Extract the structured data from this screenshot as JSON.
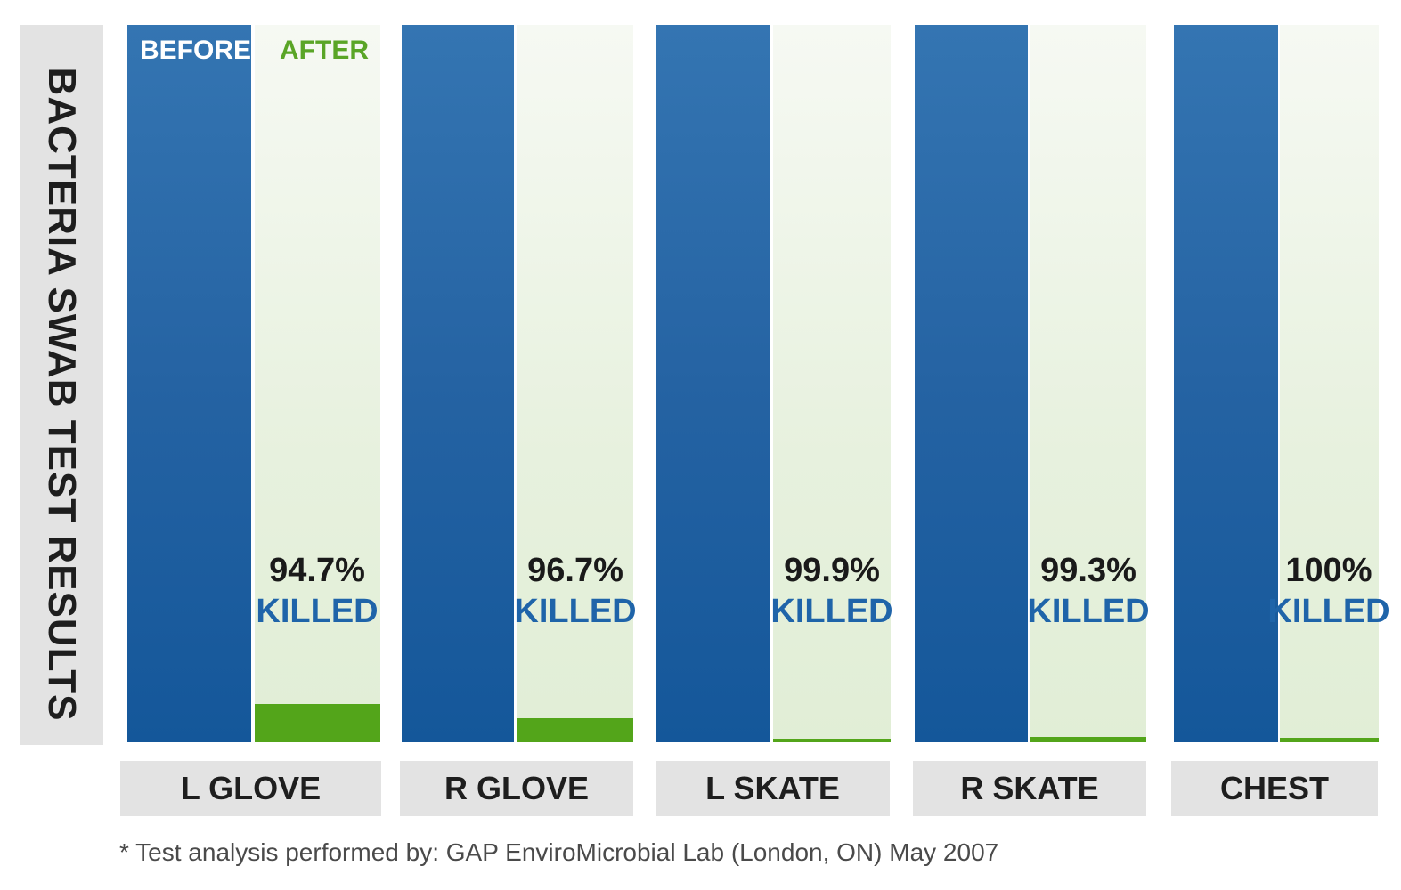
{
  "chart_data": {
    "type": "bar",
    "title": "BACTERIA SWAB TEST RESULTS",
    "legend": [
      "BEFORE",
      "AFTER"
    ],
    "categories": [
      "L GLOVE",
      "R GLOVE",
      "L SKATE",
      "R SKATE",
      "CHEST"
    ],
    "series": [
      {
        "name": "BEFORE",
        "values": [
          100,
          100,
          100,
          100,
          100
        ]
      },
      {
        "name": "AFTER",
        "values": [
          5.3,
          3.3,
          0.1,
          0.7,
          0
        ]
      }
    ],
    "annotations": [
      {
        "pct": "94.7%",
        "killed": "KILLED"
      },
      {
        "pct": "96.7%",
        "killed": "KILLED"
      },
      {
        "pct": "99.9%",
        "killed": "KILLED"
      },
      {
        "pct": "99.3%",
        "killed": "KILLED"
      },
      {
        "pct": "100%",
        "killed": "KILLED"
      }
    ],
    "ylim": [
      0,
      100
    ],
    "colors": {
      "before": "#1e65a8",
      "after": "#53a51a",
      "after_bg": "#e6f0dd"
    }
  },
  "footnote": "* Test analysis performed by: GAP EnviroMicrobial Lab (London, ON) May 2007"
}
